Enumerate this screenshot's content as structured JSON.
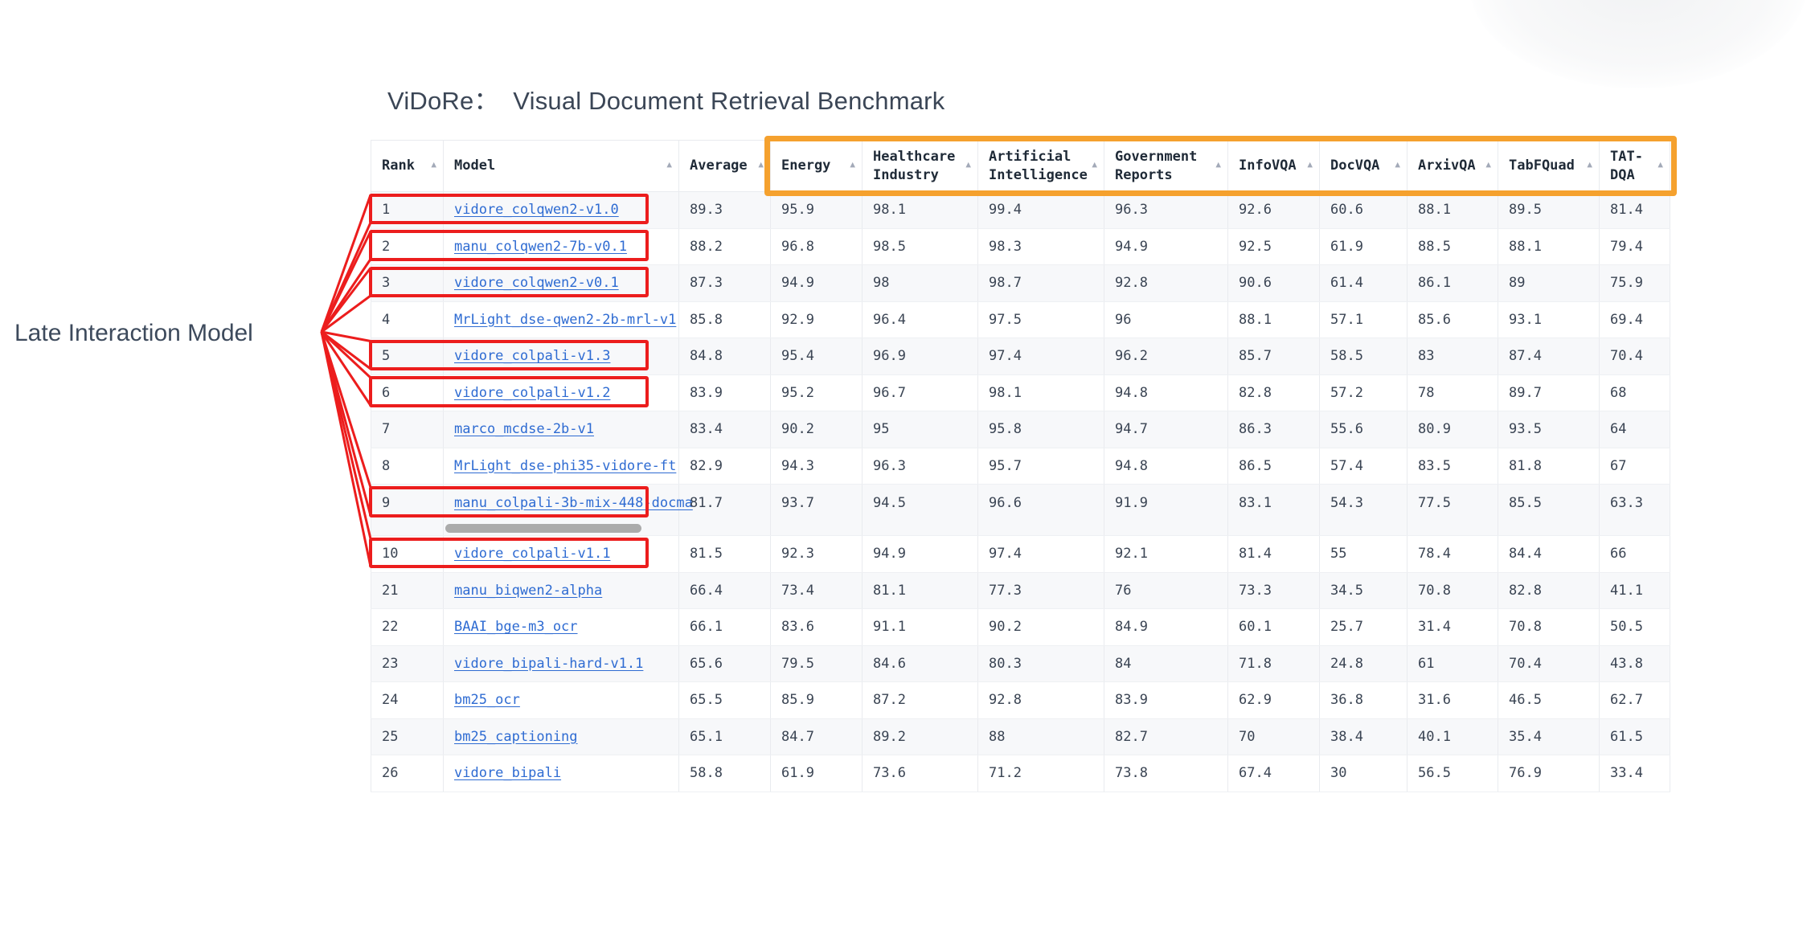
{
  "title": "ViDoRe：  Visual Document Retrieval Benchmark",
  "annotation": {
    "label": "Late Interaction Model",
    "highlighted_ranks": [
      "1",
      "2",
      "3",
      "5",
      "6",
      "9",
      "10"
    ],
    "color": "#ec1d1d"
  },
  "column_highlight": {
    "color": "#f5a12e",
    "from_column": "Energy",
    "to_column": "TAT-DQA"
  },
  "scrollbar": {
    "under_rank": "9",
    "color": "#ababab"
  },
  "sort_icon": "▲",
  "table": {
    "columns": [
      {
        "label": "Rank",
        "sortable": true
      },
      {
        "label": "Model",
        "sortable": true
      },
      {
        "label": "Average",
        "sortable": true
      },
      {
        "label": "Energy",
        "sortable": true
      },
      {
        "label": "Healthcare Industry",
        "sortable": true
      },
      {
        "label": "Artificial Intelligence",
        "sortable": true
      },
      {
        "label": "Government Reports",
        "sortable": true
      },
      {
        "label": "InfoVQA",
        "sortable": true
      },
      {
        "label": "DocVQA",
        "sortable": true
      },
      {
        "label": "ArxivQA",
        "sortable": true
      },
      {
        "label": "TabFQuad",
        "sortable": true
      },
      {
        "label": "TAT-DQA",
        "sortable": true
      }
    ],
    "rows": [
      {
        "rank": "1",
        "model": "vidore_colqwen2-v1.0",
        "values": [
          "89.3",
          "95.9",
          "98.1",
          "99.4",
          "96.3",
          "92.6",
          "60.6",
          "88.1",
          "89.5",
          "81.4"
        ]
      },
      {
        "rank": "2",
        "model": "manu_colqwen2-7b-v0.1",
        "values": [
          "88.2",
          "96.8",
          "98.5",
          "98.3",
          "94.9",
          "92.5",
          "61.9",
          "88.5",
          "88.1",
          "79.4"
        ]
      },
      {
        "rank": "3",
        "model": "vidore_colqwen2-v0.1",
        "values": [
          "87.3",
          "94.9",
          "98",
          "98.7",
          "92.8",
          "90.6",
          "61.4",
          "86.1",
          "89",
          "75.9"
        ]
      },
      {
        "rank": "4",
        "model": "MrLight_dse-qwen2-2b-mrl-v1",
        "values": [
          "85.8",
          "92.9",
          "96.4",
          "97.5",
          "96",
          "88.1",
          "57.1",
          "85.6",
          "93.1",
          "69.4"
        ]
      },
      {
        "rank": "5",
        "model": "vidore_colpali-v1.3",
        "values": [
          "84.8",
          "95.4",
          "96.9",
          "97.4",
          "96.2",
          "85.7",
          "58.5",
          "83",
          "87.4",
          "70.4"
        ]
      },
      {
        "rank": "6",
        "model": "vidore_colpali-v1.2",
        "values": [
          "83.9",
          "95.2",
          "96.7",
          "98.1",
          "94.8",
          "82.8",
          "57.2",
          "78",
          "89.7",
          "68"
        ]
      },
      {
        "rank": "7",
        "model": "marco_mcdse-2b-v1",
        "values": [
          "83.4",
          "90.2",
          "95",
          "95.8",
          "94.7",
          "86.3",
          "55.6",
          "80.9",
          "93.5",
          "64"
        ]
      },
      {
        "rank": "8",
        "model": "MrLight_dse-phi35-vidore-ft",
        "values": [
          "82.9",
          "94.3",
          "96.3",
          "95.7",
          "94.8",
          "86.5",
          "57.4",
          "83.5",
          "81.8",
          "67"
        ]
      },
      {
        "rank": "9",
        "model": "manu_colpali-3b-mix-448-docma",
        "values": [
          "81.7",
          "93.7",
          "94.5",
          "96.6",
          "91.9",
          "83.1",
          "54.3",
          "77.5",
          "85.5",
          "63.3"
        ],
        "has_scrollbar": true
      },
      {
        "rank": "10",
        "model": "vidore_colpali-v1.1",
        "values": [
          "81.5",
          "92.3",
          "94.9",
          "97.4",
          "92.1",
          "81.4",
          "55",
          "78.4",
          "84.4",
          "66"
        ]
      },
      {
        "rank": "21",
        "model": "manu_biqwen2-alpha",
        "values": [
          "66.4",
          "73.4",
          "81.1",
          "77.3",
          "76",
          "73.3",
          "34.5",
          "70.8",
          "82.8",
          "41.1"
        ]
      },
      {
        "rank": "22",
        "model": "BAAI_bge-m3_ocr",
        "values": [
          "66.1",
          "83.6",
          "91.1",
          "90.2",
          "84.9",
          "60.1",
          "25.7",
          "31.4",
          "70.8",
          "50.5"
        ]
      },
      {
        "rank": "23",
        "model": "vidore_bipali-hard-v1.1",
        "values": [
          "65.6",
          "79.5",
          "84.6",
          "80.3",
          "84",
          "71.8",
          "24.8",
          "61",
          "70.4",
          "43.8"
        ]
      },
      {
        "rank": "24",
        "model": "bm25_ocr",
        "values": [
          "65.5",
          "85.9",
          "87.2",
          "92.8",
          "83.9",
          "62.9",
          "36.8",
          "31.6",
          "46.5",
          "62.7"
        ]
      },
      {
        "rank": "25",
        "model": "bm25_captioning",
        "values": [
          "65.1",
          "84.7",
          "89.2",
          "88",
          "82.7",
          "70",
          "38.4",
          "40.1",
          "35.4",
          "61.5"
        ]
      },
      {
        "rank": "26",
        "model": "vidore_bipali",
        "values": [
          "58.8",
          "61.9",
          "73.6",
          "71.2",
          "73.8",
          "67.4",
          "30",
          "56.5",
          "76.9",
          "33.4"
        ]
      }
    ]
  },
  "colors": {
    "row_highlight": "#ec1d1d",
    "column_highlight": "#f5a12e",
    "link": "#2e6bd2",
    "header_text": "#1f2a37",
    "cell_text": "#3a4453",
    "stripe": "#f7f8fa",
    "border": "#e9ebef"
  }
}
